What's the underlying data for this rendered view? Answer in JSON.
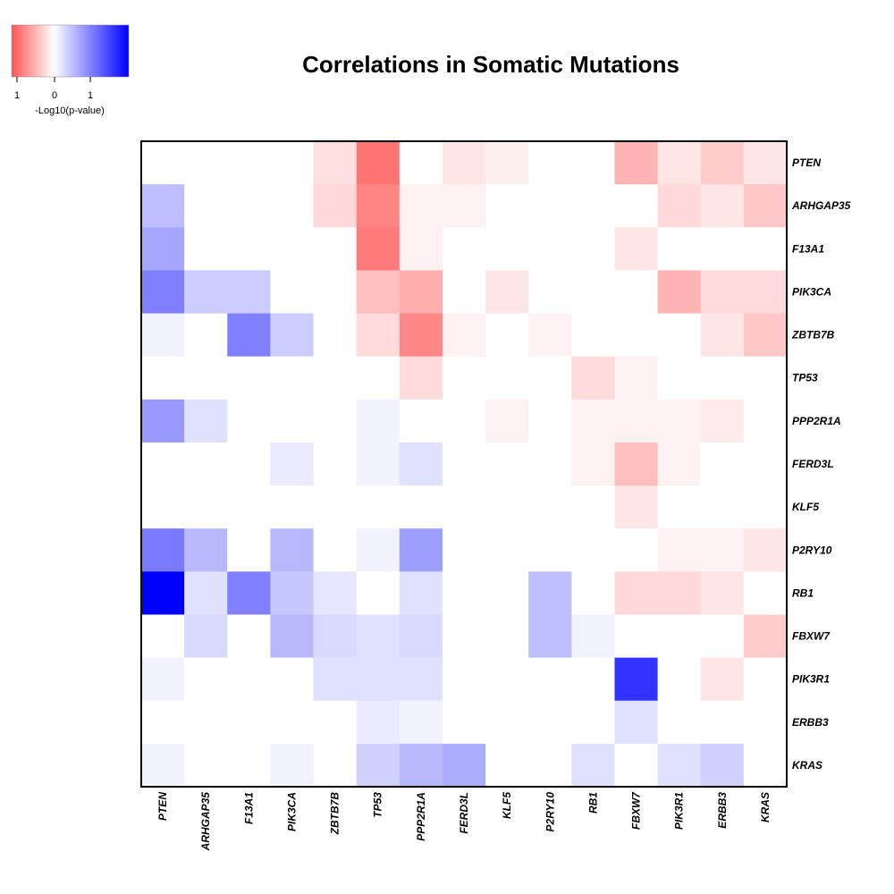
{
  "chart_data": {
    "type": "heatmap",
    "title": "Correlations in Somatic Mutations",
    "rows": [
      "PTEN",
      "ARHGAP35",
      "F13A1",
      "PIK3CA",
      "ZBTB7B",
      "TP53",
      "PPP2R1A",
      "FERD3L",
      "KLF5",
      "P2RY10",
      "RB1",
      "FBXW7",
      "PIK3R1",
      "ERBB3",
      "KRAS"
    ],
    "columns": [
      "PTEN",
      "ARHGAP35",
      "F13A1",
      "PIK3CA",
      "ZBTB7B",
      "TP53",
      "PPP2R1A",
      "FERD3L",
      "KLF5",
      "P2RY10",
      "RB1",
      "FBXW7",
      "PIK3R1",
      "ERBB3",
      "KRAS"
    ],
    "values": [
      [
        0,
        0,
        0,
        0,
        -0.12,
        -0.55,
        0,
        -0.1,
        -0.06,
        0,
        0,
        -0.3,
        -0.1,
        -0.2,
        -0.1
      ],
      [
        0.25,
        0,
        0,
        0,
        -0.15,
        -0.48,
        -0.05,
        -0.05,
        0,
        0,
        0,
        0,
        -0.15,
        -0.1,
        -0.22
      ],
      [
        0.35,
        0,
        0,
        0,
        0,
        -0.52,
        -0.05,
        0,
        0,
        0,
        0,
        -0.1,
        0,
        0,
        0
      ],
      [
        0.5,
        0.2,
        0.2,
        0,
        0,
        -0.25,
        -0.32,
        0,
        -0.1,
        0,
        0,
        0,
        -0.3,
        -0.14,
        -0.14
      ],
      [
        0.05,
        0,
        0.5,
        0.2,
        0,
        -0.14,
        -0.47,
        -0.05,
        0,
        -0.05,
        0,
        0,
        0,
        -0.1,
        -0.22
      ],
      [
        0,
        0,
        0,
        0,
        0,
        0,
        -0.14,
        0,
        0,
        0,
        -0.14,
        -0.05,
        0,
        0,
        0
      ],
      [
        0.4,
        0.12,
        0,
        0,
        0,
        0.05,
        0,
        0,
        -0.05,
        0,
        -0.05,
        -0.05,
        -0.05,
        -0.08,
        0
      ],
      [
        0,
        0,
        0,
        0.08,
        0,
        0.05,
        0.12,
        0,
        0,
        0,
        -0.05,
        -0.25,
        -0.05,
        0,
        0
      ],
      [
        0,
        0,
        0,
        0,
        0,
        0,
        0,
        0,
        0,
        0,
        0,
        -0.1,
        0,
        0,
        0
      ],
      [
        0.52,
        0.28,
        0,
        0.28,
        0,
        0.05,
        0.38,
        0,
        0,
        0,
        0,
        0,
        -0.05,
        -0.05,
        -0.1
      ],
      [
        1.0,
        0.12,
        0.5,
        0.22,
        0.1,
        0,
        0.12,
        0,
        0,
        0.25,
        0,
        -0.15,
        -0.15,
        -0.1,
        0
      ],
      [
        0,
        0.15,
        0,
        0.28,
        0.15,
        0.12,
        0.15,
        0,
        0,
        0.25,
        0.05,
        0,
        0,
        0,
        -0.2
      ],
      [
        0.05,
        0,
        0,
        0,
        0.12,
        0.12,
        0.12,
        0,
        0,
        0,
        0,
        0.8,
        0,
        -0.1,
        0
      ],
      [
        0,
        0,
        0,
        0,
        0,
        0.08,
        0.05,
        0,
        0,
        0,
        0,
        0.12,
        0,
        0,
        0
      ],
      [
        0.05,
        0,
        0,
        0.05,
        0,
        0.18,
        0.28,
        0.32,
        0,
        0,
        0.12,
        0,
        0.12,
        0.18,
        0
      ]
    ],
    "color_scale": {
      "negative": "#ff0000",
      "zero": "#ffffff",
      "positive": "#0000ff",
      "range": [
        -1,
        1
      ]
    },
    "legend": {
      "label": "-Log10(p-value)",
      "ticks": [
        "1",
        "0",
        "1"
      ],
      "placement": "top-left"
    }
  }
}
